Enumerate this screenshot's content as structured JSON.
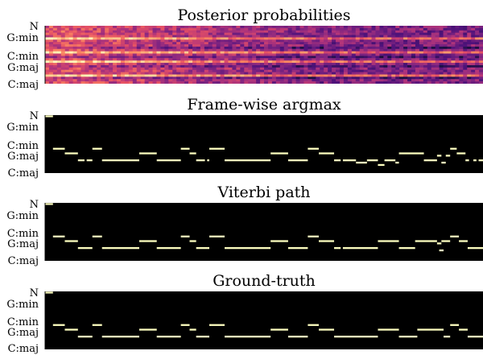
{
  "chart_data": [
    {
      "type": "heatmap",
      "title": "Posterior probabilities",
      "ytick_labels": [
        "N",
        "G:min",
        "C:min",
        "G:maj",
        "C:maj"
      ],
      "colormap": "magma",
      "note_rows": 25,
      "frames": 110,
      "bright_rows": [
        5,
        11,
        15,
        21
      ],
      "dark_rows": [
        9,
        13,
        17,
        22
      ]
    },
    {
      "type": "heatmap",
      "title": "Frame-wise argmax",
      "ytick_labels": [
        "N",
        "G:min",
        "C:min",
        "G:maj",
        "C:maj"
      ],
      "rows": 25,
      "segments": [
        {
          "row": 0,
          "x0": 0.0,
          "x1": 0.018
        },
        {
          "row": 14,
          "x0": 0.018,
          "x1": 0.045
        },
        {
          "row": 16,
          "x0": 0.045,
          "x1": 0.075
        },
        {
          "row": 19,
          "x0": 0.075,
          "x1": 0.09
        },
        {
          "row": 19,
          "x0": 0.095,
          "x1": 0.108
        },
        {
          "row": 14,
          "x0": 0.108,
          "x1": 0.13
        },
        {
          "row": 19,
          "x0": 0.13,
          "x1": 0.215
        },
        {
          "row": 16,
          "x0": 0.215,
          "x1": 0.255
        },
        {
          "row": 19,
          "x0": 0.255,
          "x1": 0.31
        },
        {
          "row": 14,
          "x0": 0.31,
          "x1": 0.33
        },
        {
          "row": 16,
          "x0": 0.33,
          "x1": 0.345
        },
        {
          "row": 19,
          "x0": 0.345,
          "x1": 0.365
        },
        {
          "row": 19,
          "x0": 0.37,
          "x1": 0.375
        },
        {
          "row": 14,
          "x0": 0.375,
          "x1": 0.41
        },
        {
          "row": 19,
          "x0": 0.41,
          "x1": 0.515
        },
        {
          "row": 16,
          "x0": 0.515,
          "x1": 0.555
        },
        {
          "row": 19,
          "x0": 0.555,
          "x1": 0.6
        },
        {
          "row": 14,
          "x0": 0.6,
          "x1": 0.625
        },
        {
          "row": 16,
          "x0": 0.625,
          "x1": 0.66
        },
        {
          "row": 19,
          "x0": 0.66,
          "x1": 0.675
        },
        {
          "row": 19,
          "x0": 0.68,
          "x1": 0.71
        },
        {
          "row": 20,
          "x0": 0.71,
          "x1": 0.735
        },
        {
          "row": 19,
          "x0": 0.735,
          "x1": 0.76
        },
        {
          "row": 21,
          "x0": 0.76,
          "x1": 0.775
        },
        {
          "row": 19,
          "x0": 0.775,
          "x1": 0.8
        },
        {
          "row": 20,
          "x0": 0.8,
          "x1": 0.808
        },
        {
          "row": 16,
          "x0": 0.808,
          "x1": 0.865
        },
        {
          "row": 19,
          "x0": 0.865,
          "x1": 0.895
        },
        {
          "row": 17,
          "x0": 0.895,
          "x1": 0.905
        },
        {
          "row": 20,
          "x0": 0.905,
          "x1": 0.915
        },
        {
          "row": 17,
          "x0": 0.915,
          "x1": 0.925
        },
        {
          "row": 14,
          "x0": 0.925,
          "x1": 0.94
        },
        {
          "row": 16,
          "x0": 0.94,
          "x1": 0.96
        },
        {
          "row": 19,
          "x0": 0.96,
          "x1": 0.968
        },
        {
          "row": 19,
          "x0": 0.978,
          "x1": 0.985
        },
        {
          "row": 19,
          "x0": 0.99,
          "x1": 1.0
        }
      ]
    },
    {
      "type": "heatmap",
      "title": "Viterbi path",
      "ytick_labels": [
        "N",
        "G:min",
        "C:min",
        "G:maj",
        "C:maj"
      ],
      "rows": 25,
      "segments": [
        {
          "row": 0,
          "x0": 0.0,
          "x1": 0.018
        },
        {
          "row": 14,
          "x0": 0.018,
          "x1": 0.045
        },
        {
          "row": 16,
          "x0": 0.045,
          "x1": 0.075
        },
        {
          "row": 19,
          "x0": 0.075,
          "x1": 0.108
        },
        {
          "row": 14,
          "x0": 0.108,
          "x1": 0.13
        },
        {
          "row": 19,
          "x0": 0.13,
          "x1": 0.215
        },
        {
          "row": 16,
          "x0": 0.215,
          "x1": 0.255
        },
        {
          "row": 19,
          "x0": 0.255,
          "x1": 0.31
        },
        {
          "row": 14,
          "x0": 0.31,
          "x1": 0.33
        },
        {
          "row": 16,
          "x0": 0.33,
          "x1": 0.345
        },
        {
          "row": 19,
          "x0": 0.345,
          "x1": 0.375
        },
        {
          "row": 14,
          "x0": 0.375,
          "x1": 0.41
        },
        {
          "row": 19,
          "x0": 0.41,
          "x1": 0.515
        },
        {
          "row": 16,
          "x0": 0.515,
          "x1": 0.555
        },
        {
          "row": 19,
          "x0": 0.555,
          "x1": 0.6
        },
        {
          "row": 14,
          "x0": 0.6,
          "x1": 0.625
        },
        {
          "row": 16,
          "x0": 0.625,
          "x1": 0.66
        },
        {
          "row": 19,
          "x0": 0.66,
          "x1": 0.675
        },
        {
          "row": 19,
          "x0": 0.68,
          "x1": 0.76
        },
        {
          "row": 16,
          "x0": 0.76,
          "x1": 0.808
        },
        {
          "row": 19,
          "x0": 0.808,
          "x1": 0.845
        },
        {
          "row": 16,
          "x0": 0.845,
          "x1": 0.895
        },
        {
          "row": 17,
          "x0": 0.895,
          "x1": 0.905
        },
        {
          "row": 20,
          "x0": 0.9,
          "x1": 0.91
        },
        {
          "row": 16,
          "x0": 0.905,
          "x1": 0.925
        },
        {
          "row": 14,
          "x0": 0.925,
          "x1": 0.945
        },
        {
          "row": 16,
          "x0": 0.945,
          "x1": 0.965
        },
        {
          "row": 19,
          "x0": 0.965,
          "x1": 1.0
        }
      ]
    },
    {
      "type": "heatmap",
      "title": "Ground-truth",
      "ytick_labels": [
        "N",
        "G:min",
        "C:min",
        "G:maj",
        "C:maj"
      ],
      "rows": 25,
      "segments": [
        {
          "row": 0,
          "x0": 0.0,
          "x1": 0.018
        },
        {
          "row": 14,
          "x0": 0.018,
          "x1": 0.045
        },
        {
          "row": 16,
          "x0": 0.045,
          "x1": 0.075
        },
        {
          "row": 19,
          "x0": 0.075,
          "x1": 0.108
        },
        {
          "row": 14,
          "x0": 0.108,
          "x1": 0.13
        },
        {
          "row": 19,
          "x0": 0.13,
          "x1": 0.215
        },
        {
          "row": 16,
          "x0": 0.215,
          "x1": 0.255
        },
        {
          "row": 19,
          "x0": 0.255,
          "x1": 0.31
        },
        {
          "row": 14,
          "x0": 0.31,
          "x1": 0.33
        },
        {
          "row": 16,
          "x0": 0.33,
          "x1": 0.345
        },
        {
          "row": 19,
          "x0": 0.345,
          "x1": 0.375
        },
        {
          "row": 14,
          "x0": 0.375,
          "x1": 0.41
        },
        {
          "row": 19,
          "x0": 0.41,
          "x1": 0.515
        },
        {
          "row": 16,
          "x0": 0.515,
          "x1": 0.555
        },
        {
          "row": 19,
          "x0": 0.555,
          "x1": 0.6
        },
        {
          "row": 14,
          "x0": 0.6,
          "x1": 0.625
        },
        {
          "row": 16,
          "x0": 0.625,
          "x1": 0.66
        },
        {
          "row": 19,
          "x0": 0.66,
          "x1": 0.76
        },
        {
          "row": 16,
          "x0": 0.76,
          "x1": 0.808
        },
        {
          "row": 19,
          "x0": 0.808,
          "x1": 0.85
        },
        {
          "row": 16,
          "x0": 0.85,
          "x1": 0.91
        },
        {
          "row": 19,
          "x0": 0.91,
          "x1": 0.925
        },
        {
          "row": 14,
          "x0": 0.925,
          "x1": 0.945
        },
        {
          "row": 16,
          "x0": 0.945,
          "x1": 0.965
        },
        {
          "row": 19,
          "x0": 0.965,
          "x1": 1.0
        }
      ]
    }
  ]
}
